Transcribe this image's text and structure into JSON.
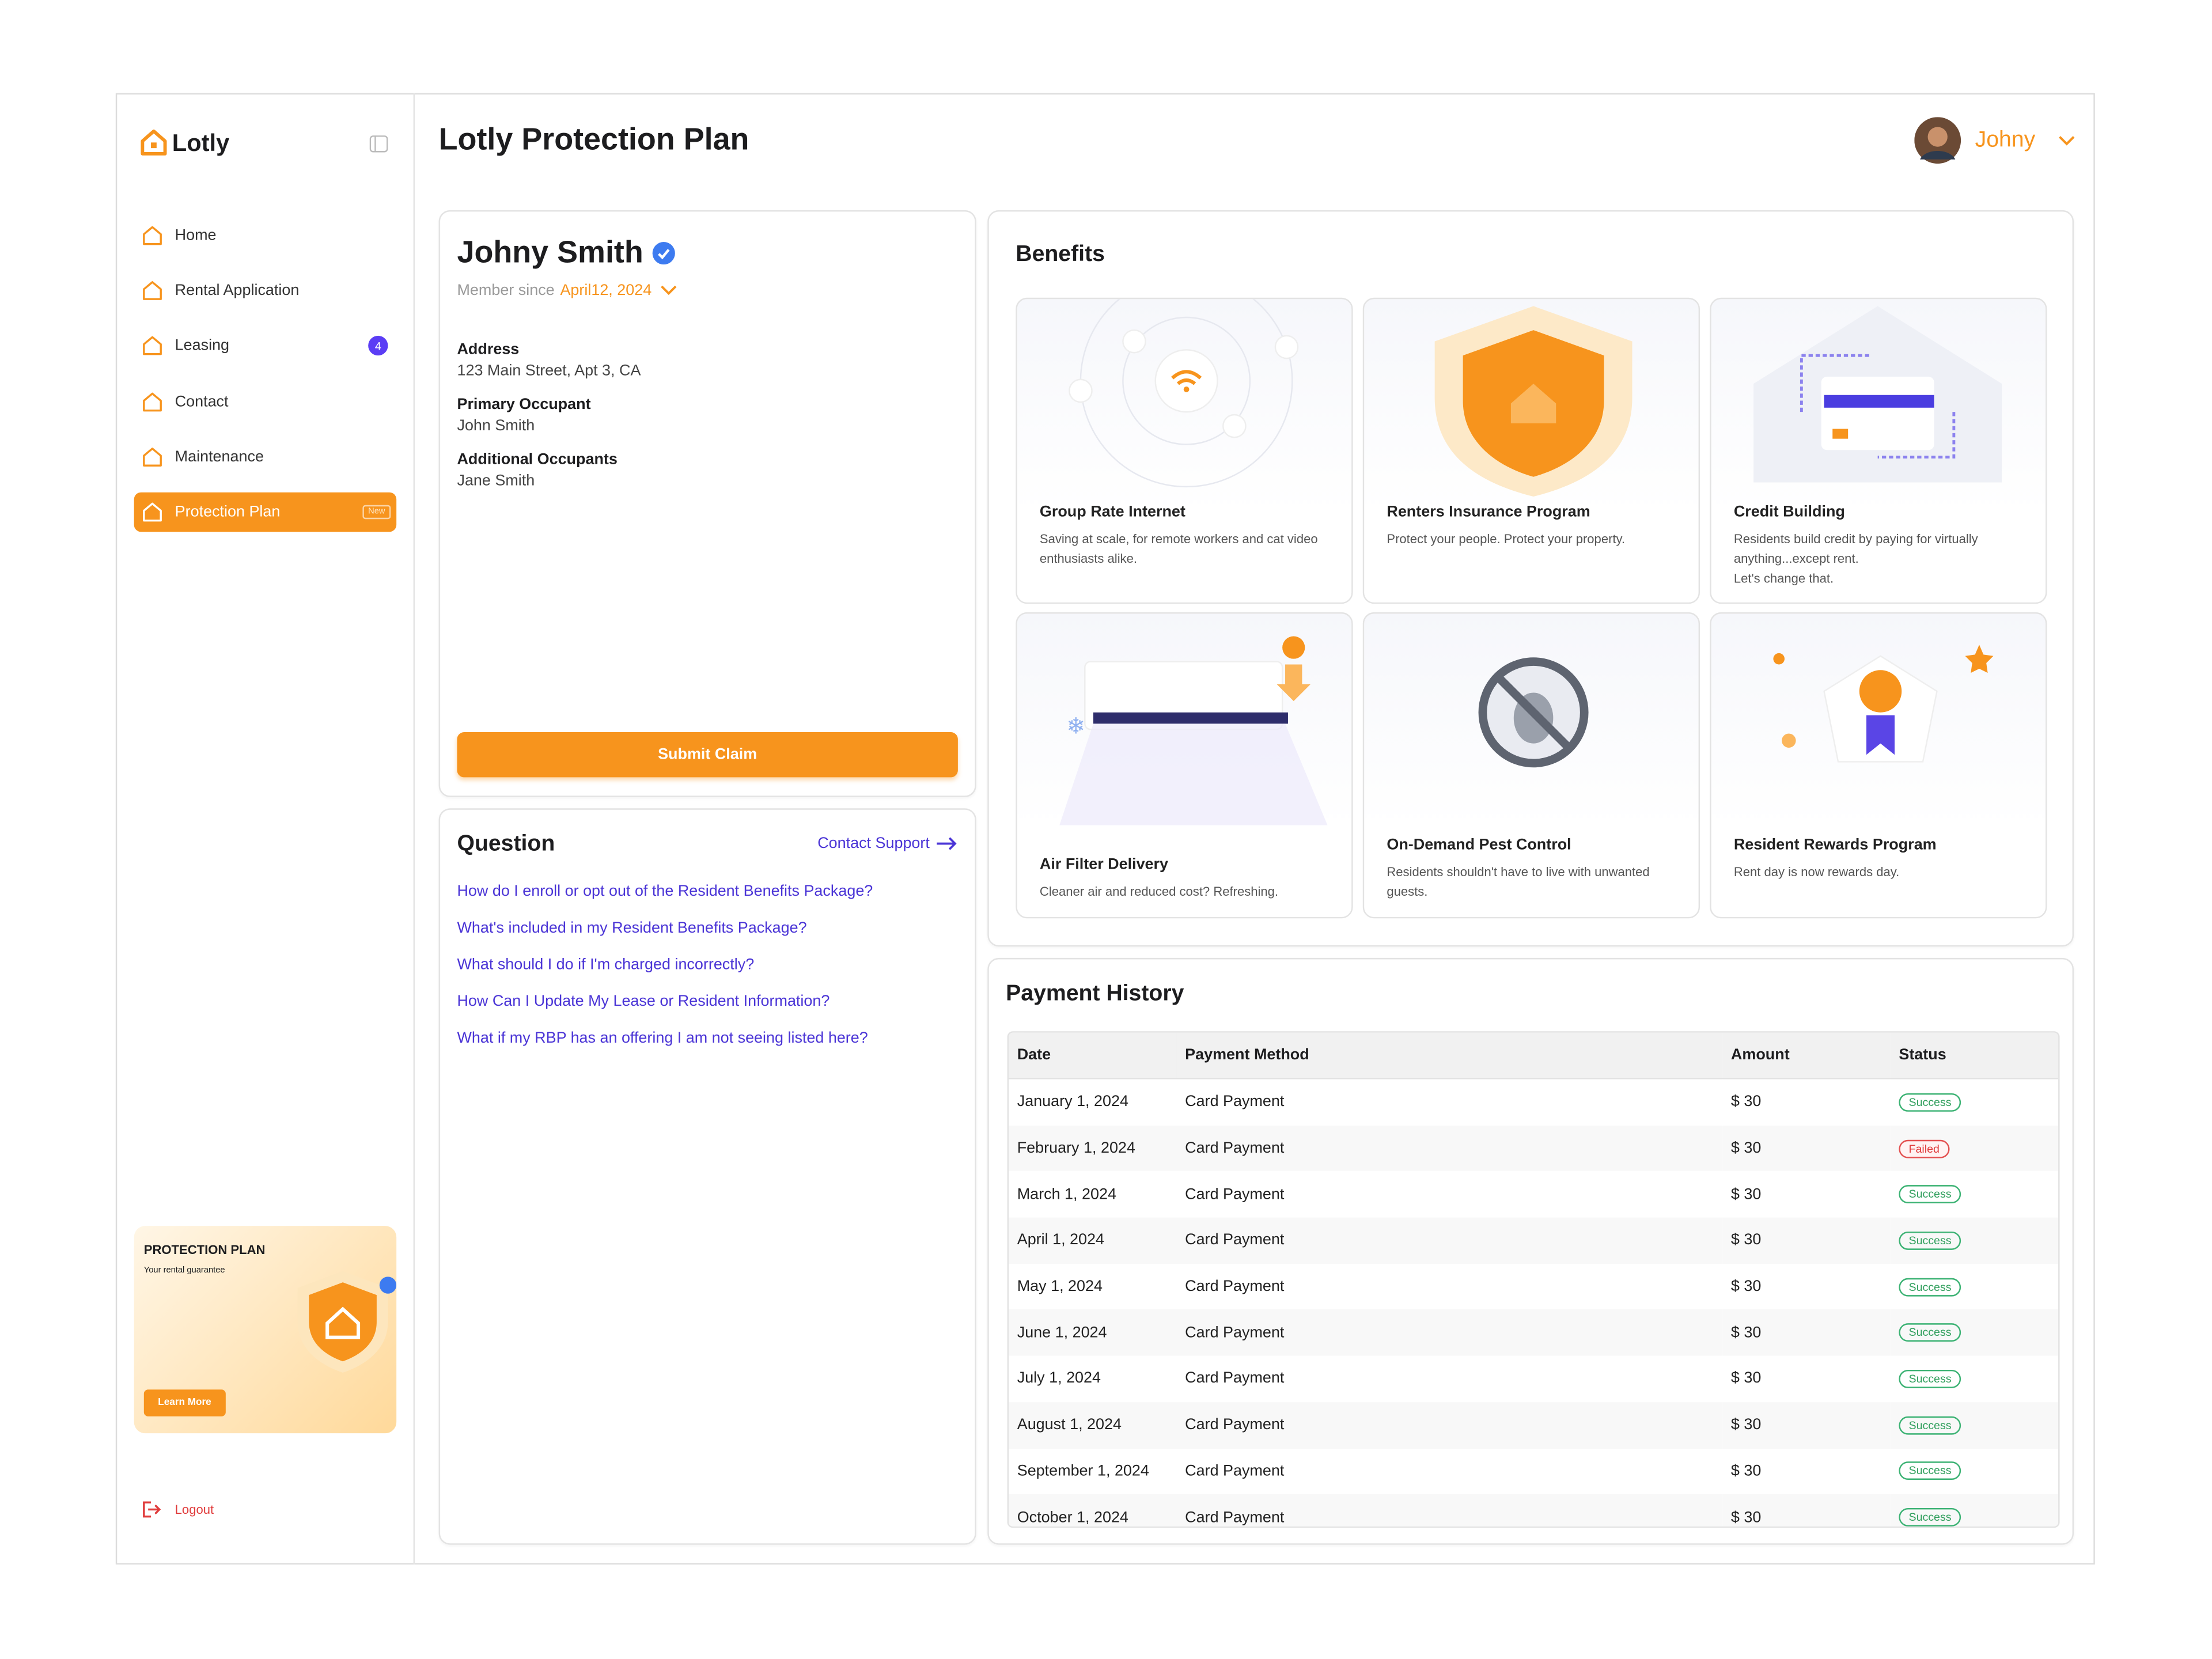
{
  "sidebar": {
    "brand": "Lotly",
    "nav": [
      {
        "label": "Home"
      },
      {
        "label": "Rental Application"
      },
      {
        "label": "Leasing",
        "badge": "4"
      },
      {
        "label": "Contact"
      },
      {
        "label": "Maintenance"
      },
      {
        "label": "Protection Plan",
        "tag": "New"
      }
    ],
    "promo": {
      "title": "PROTECTION PLAN",
      "subtitle": "Your rental guarantee",
      "button": "Learn More"
    },
    "logout": "Logout"
  },
  "header": {
    "title": "Lotly Protection Plan",
    "user": "Johny"
  },
  "profile": {
    "name": "Johny Smith",
    "member_since_label": "Member since",
    "member_since": "April12, 2024",
    "fields": [
      {
        "label": "Address",
        "value": "123 Main Street, Apt 3, CA"
      },
      {
        "label": "Primary Occupant",
        "value": "John Smith"
      },
      {
        "label": "Additional Occupants",
        "value": "Jane Smith"
      }
    ],
    "button": "Submit Claim"
  },
  "questions": {
    "title": "Question",
    "link": "Contact Support",
    "items": [
      "How do I enroll or opt out of the Resident Benefits Package?",
      "What's included in my Resident Benefits Package?",
      "What should I do if I'm charged incorrectly?",
      "How Can I Update My Lease or Resident Information?",
      "What if my RBP has an offering I am not seeing listed here?"
    ]
  },
  "benefits": {
    "title": "Benefits",
    "items": [
      {
        "title": "Group Rate Internet",
        "description": "Saving at scale, for remote workers and cat video enthusiasts alike."
      },
      {
        "title": "Renters Insurance Program",
        "description": "Protect your people. Protect your property."
      },
      {
        "title": "Credit Building",
        "description": "Residents build credit by paying for virtually anything...except rent.\nLet's change that."
      },
      {
        "title": "Air Filter Delivery",
        "description": "Cleaner air and reduced cost? Refreshing."
      },
      {
        "title": "On-Demand Pest Control",
        "description": "Residents shouldn't have to live with unwanted guests."
      },
      {
        "title": "Resident Rewards Program",
        "description": "Rent day is now rewards day."
      }
    ]
  },
  "payments": {
    "title": "Payment History",
    "columns": [
      "Date",
      "Payment Method",
      "Amount",
      "Status"
    ],
    "rows": [
      [
        "January 1, 2024",
        "Card Payment",
        "$ 30",
        "Success"
      ],
      [
        "February 1, 2024",
        "Card Payment",
        "$ 30",
        "Failed"
      ],
      [
        "March 1, 2024",
        "Card Payment",
        "$ 30",
        "Success"
      ],
      [
        "April 1, 2024",
        "Card Payment",
        "$ 30",
        "Success"
      ],
      [
        "May 1, 2024",
        "Card Payment",
        "$ 30",
        "Success"
      ],
      [
        "June 1, 2024",
        "Card Payment",
        "$ 30",
        "Success"
      ],
      [
        "July 1, 2024",
        "Card Payment",
        "$ 30",
        "Success"
      ],
      [
        "August 1, 2024",
        "Card Payment",
        "$ 30",
        "Success"
      ],
      [
        "September 1, 2024",
        "Card Payment",
        "$ 30",
        "Success"
      ],
      [
        "October 1, 2024",
        "Card Payment",
        "$ 30",
        "Success"
      ]
    ]
  }
}
